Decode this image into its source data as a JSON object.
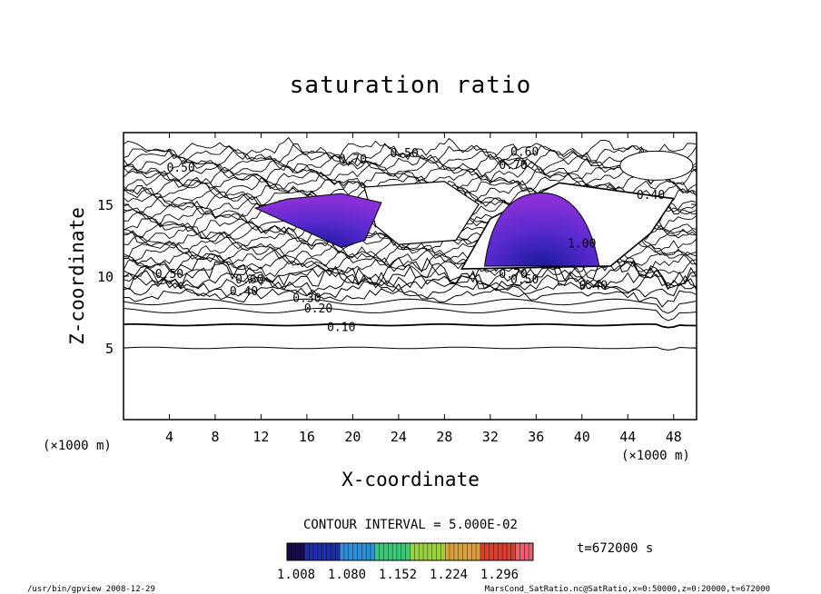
{
  "chart_data": {
    "type": "contour",
    "title": "saturation ratio",
    "xlabel": "X-coordinate",
    "ylabel": "Z-coordinate",
    "x_unit": "(×1000 m)",
    "z_unit": "(×1000 m)",
    "xlim": [
      0,
      50
    ],
    "ylim": [
      0,
      20
    ],
    "x_ticks": [
      4,
      8,
      12,
      16,
      20,
      24,
      28,
      32,
      36,
      40,
      44,
      48
    ],
    "y_ticks": [
      5,
      10,
      15
    ],
    "contour_interval_text": "CONTOUR INTERVAL = 5.000E-02",
    "time_text": "t=672000 s",
    "colorbar": {
      "labels": [
        "1.008",
        "1.080",
        "1.152",
        "1.224",
        "1.296"
      ],
      "colors": [
        "#1a0a4a",
        "#1f2fa8",
        "#2f8fd8",
        "#3cc878",
        "#9bd040",
        "#d8a040",
        "#d84030",
        "#e86070"
      ]
    },
    "contour_labels": [
      {
        "text": "0.10",
        "x": 19,
        "z": 6.5
      },
      {
        "text": "0.20",
        "x": 17,
        "z": 7.8
      },
      {
        "text": "0.30",
        "x": 16,
        "z": 8.5
      },
      {
        "text": "0.40",
        "x": 10.5,
        "z": 9.0
      },
      {
        "text": "0.50",
        "x": 4,
        "z": 10.2
      },
      {
        "text": "0.60",
        "x": 11,
        "z": 9.8
      },
      {
        "text": "0.70",
        "x": 20,
        "z": 18.2
      },
      {
        "text": "0.50",
        "x": 24.5,
        "z": 18.6
      },
      {
        "text": "0.60",
        "x": 35,
        "z": 18.7
      },
      {
        "text": "0.70",
        "x": 34,
        "z": 17.8
      },
      {
        "text": "0.50",
        "x": 5,
        "z": 17.6
      },
      {
        "text": "0.40",
        "x": 46,
        "z": 15.7
      },
      {
        "text": "0.50",
        "x": 35,
        "z": 9.8
      },
      {
        "text": "0.40",
        "x": 41,
        "z": 9.4
      },
      {
        "text": "0.70",
        "x": 34,
        "z": 10.2
      },
      {
        "text": "1.00",
        "x": 40,
        "z": 12.3
      }
    ],
    "supersaturated_regions": [
      {
        "x_center": 36.5,
        "z_base": 10.7,
        "z_top": 15.8,
        "x_range": [
          31.5,
          41.5
        ]
      },
      {
        "x_center": 19,
        "z_base": 12.5,
        "z_top": 15.5,
        "x_range": [
          11.5,
          22.5
        ]
      }
    ]
  },
  "footer": {
    "left": "/usr/bin/gpview   2008-12-29",
    "right": "MarsCond_SatRatio.nc@SatRatio,x=0:50000,z=0:20000,t=672000"
  }
}
